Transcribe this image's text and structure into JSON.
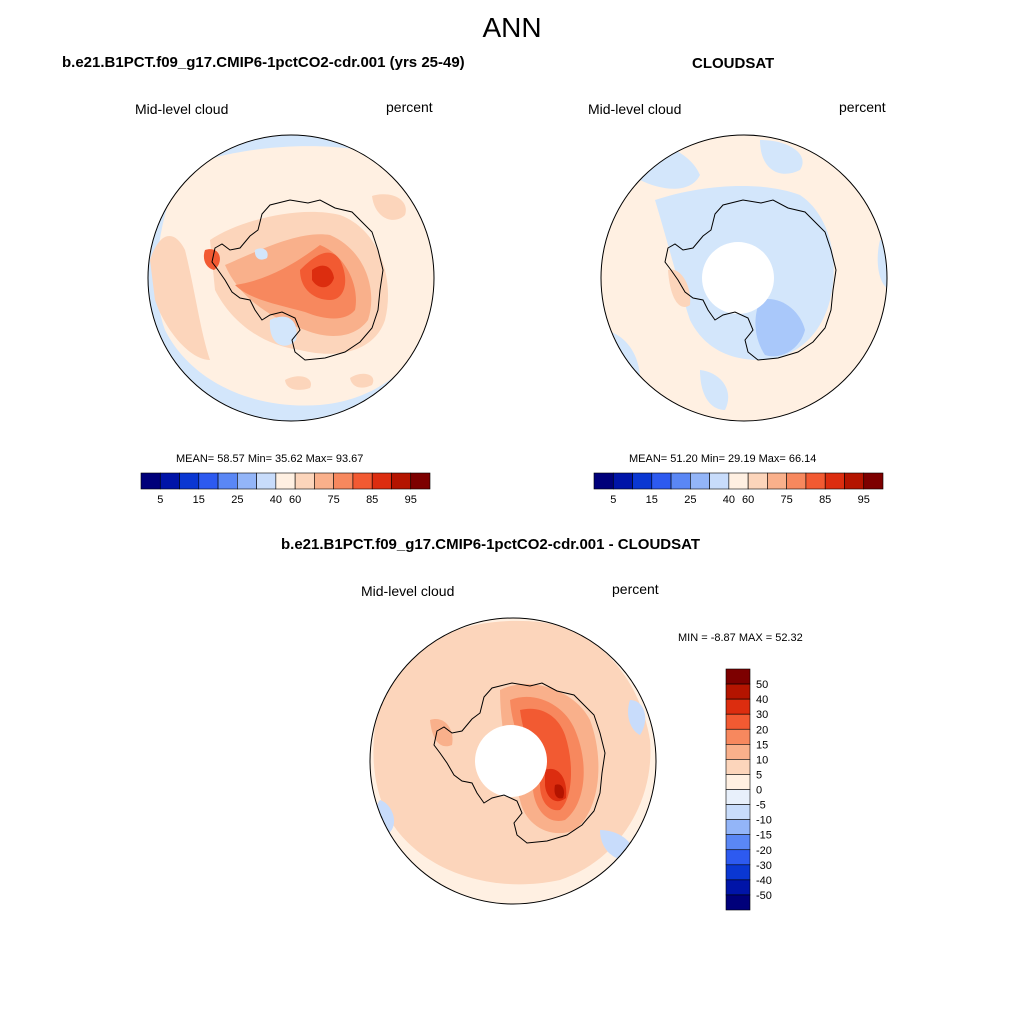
{
  "figure": {
    "title": "ANN",
    "panels": [
      {
        "id": "model",
        "title": "b.e21.B1PCT.f09_g17.CMIP6-1pctCO2-cdr.001 (yrs 25-49)",
        "left_label": "Mid-level cloud",
        "right_label": "percent",
        "stats": "MEAN=  58.57  Min=  35.62  Max=  93.67",
        "mean": 58.57,
        "min": 35.62,
        "max": 93.67,
        "colorbar_ticks": [
          "5",
          "15",
          "25",
          "40",
          "60",
          "75",
          "85",
          "95"
        ]
      },
      {
        "id": "obs",
        "title": "CLOUDSAT",
        "left_label": "Mid-level cloud",
        "right_label": "percent",
        "stats": "MEAN=  51.20  Min=  29.19  Max=  66.14",
        "mean": 51.2,
        "min": 29.19,
        "max": 66.14,
        "colorbar_ticks": [
          "5",
          "15",
          "25",
          "40",
          "60",
          "75",
          "85",
          "95"
        ]
      },
      {
        "id": "diff",
        "title": "b.e21.B1PCT.f09_g17.CMIP6-1pctCO2-cdr.001 - CLOUDSAT",
        "left_label": "Mid-level cloud",
        "right_label": "percent",
        "stats": "MIN =  -8.87 MAX =  52.32",
        "min": -8.87,
        "max": 52.32,
        "colorbar_ticks": [
          "50",
          "40",
          "30",
          "20",
          "15",
          "10",
          "5",
          "0",
          "-5",
          "-10",
          "-15",
          "-20",
          "-30",
          "-40",
          "-50"
        ]
      }
    ],
    "seq_colors": [
      "#00007a",
      "#0014a8",
      "#0a37d2",
      "#2d5af0",
      "#5a87f5",
      "#93b5f8",
      "#c8dcfb",
      "#fff0e2",
      "#fcd5bb",
      "#f9b08b",
      "#f7885e",
      "#f25a32",
      "#dc2d0f",
      "#b41400",
      "#7d0000"
    ],
    "div_colors": [
      "#7d0000",
      "#b41400",
      "#dc2d0f",
      "#f25a32",
      "#f7885e",
      "#f9b08b",
      "#fcd5bb",
      "#fff0e2",
      "#e8f0fb",
      "#c8dcfb",
      "#93b5f8",
      "#5a87f5",
      "#2d5af0",
      "#0a37d2",
      "#0014a8",
      "#00007a"
    ]
  }
}
